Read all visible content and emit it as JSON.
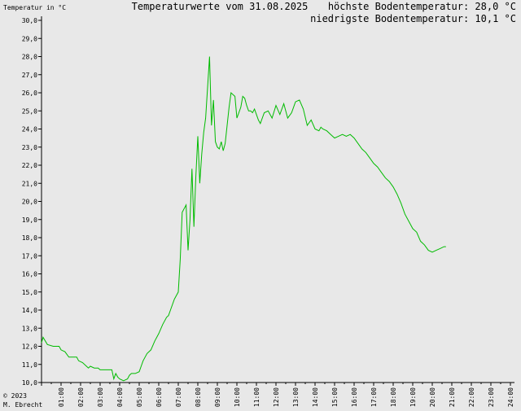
{
  "header": {
    "ylabel": "Temperatur in °C",
    "title": "Temperaturwerte vom 31.08.2025",
    "max_label": "höchste Bodentemperatur: 28,0 °C",
    "min_label": "niedrigste Bodentemperatur: 10,1 °C"
  },
  "footer": {
    "copyright": "© 2023",
    "author": "M. Ebrecht"
  },
  "colors": {
    "background": "#e8e8e8",
    "axis": "#000000",
    "line": "#00bb00"
  },
  "chart_data": {
    "type": "line",
    "title": "Temperaturwerte vom 31.08.2025",
    "ylabel": "Temperatur in °C",
    "xlabel": "",
    "xlim": [
      0,
      24
    ],
    "ylim": [
      10,
      30
    ],
    "grid": false,
    "y_ticks": [
      "10,0",
      "11,0",
      "12,0",
      "13,0",
      "14,0",
      "15,0",
      "16,0",
      "17,0",
      "18,0",
      "19,0",
      "20,0",
      "21,0",
      "22,0",
      "23,0",
      "24,0",
      "25,0",
      "26,0",
      "27,0",
      "28,0",
      "29,0",
      "30,0"
    ],
    "x_ticks": [
      "01:00",
      "02:00",
      "03:00",
      "04:00",
      "05:00",
      "06:00",
      "07:00",
      "08:00",
      "09:00",
      "10:00",
      "11:00",
      "12:00",
      "13:00",
      "14:00",
      "15:00",
      "16:00",
      "17:00",
      "18:00",
      "19:00",
      "20:00",
      "21:00",
      "22:00",
      "23:00",
      "24:00"
    ],
    "series": [
      {
        "x": [
          0.0,
          0.08,
          0.3,
          0.6,
          0.9,
          1.0,
          1.2,
          1.4,
          1.6,
          1.8,
          1.9,
          2.1,
          2.3,
          2.4,
          2.5,
          2.7,
          2.9,
          3.0,
          3.2,
          3.4,
          3.6,
          3.7,
          3.8,
          3.9,
          4.0,
          4.2,
          4.4,
          4.5,
          4.6,
          4.8,
          5.0,
          5.1,
          5.2,
          5.4,
          5.6,
          5.8,
          5.9,
          6.0,
          6.2,
          6.4,
          6.5,
          6.6,
          6.8,
          7.0,
          7.1,
          7.2,
          7.3,
          7.4,
          7.5,
          7.6,
          7.7,
          7.8,
          7.9,
          8.0,
          8.1,
          8.2,
          8.3,
          8.4,
          8.5,
          8.6,
          8.7,
          8.8,
          8.9,
          9.0,
          9.1,
          9.2,
          9.3,
          9.4,
          9.5,
          9.6,
          9.7,
          9.8,
          9.9,
          10.0,
          10.1,
          10.2,
          10.3,
          10.4,
          10.5,
          10.6,
          10.7,
          10.8,
          10.9,
          11.0,
          11.1,
          11.2,
          11.4,
          11.6,
          11.8,
          12.0,
          12.2,
          12.4,
          12.6,
          12.8,
          13.0,
          13.2,
          13.4,
          13.6,
          13.8,
          14.0,
          14.2,
          14.3,
          14.4,
          14.6,
          14.8,
          15.0,
          15.2,
          15.4,
          15.6,
          15.8,
          16.0,
          16.2,
          16.4,
          16.6,
          16.8,
          17.0,
          17.2,
          17.4,
          17.6,
          17.8,
          18.0,
          18.2,
          18.4,
          18.6,
          18.8,
          19.0,
          19.2,
          19.4,
          19.6,
          19.8,
          20.0,
          20.2,
          20.4,
          20.6,
          20.7
        ],
        "values": [
          12.2,
          12.5,
          12.1,
          12.0,
          12.0,
          11.8,
          11.7,
          11.4,
          11.4,
          11.4,
          11.2,
          11.1,
          10.9,
          10.8,
          10.9,
          10.8,
          10.8,
          10.7,
          10.7,
          10.7,
          10.7,
          10.2,
          10.5,
          10.3,
          10.2,
          10.1,
          10.2,
          10.4,
          10.5,
          10.5,
          10.6,
          10.9,
          11.2,
          11.6,
          11.8,
          12.3,
          12.5,
          12.7,
          13.2,
          13.6,
          13.7,
          14.0,
          14.6,
          15.0,
          16.8,
          19.4,
          19.6,
          19.8,
          17.3,
          19.0,
          21.8,
          18.6,
          21.4,
          23.6,
          21.0,
          22.6,
          23.8,
          24.6,
          26.3,
          28.0,
          24.2,
          25.6,
          23.3,
          23.0,
          22.9,
          23.3,
          22.8,
          23.2,
          24.2,
          25.2,
          26.0,
          25.9,
          25.8,
          24.6,
          24.9,
          25.2,
          25.8,
          25.7,
          25.3,
          25.0,
          25.0,
          24.9,
          25.1,
          24.8,
          24.5,
          24.3,
          24.9,
          25.0,
          24.6,
          25.3,
          24.8,
          25.4,
          24.6,
          24.9,
          25.5,
          25.6,
          25.1,
          24.2,
          24.5,
          24.0,
          23.9,
          24.1,
          24.0,
          23.9,
          23.7,
          23.5,
          23.6,
          23.7,
          23.6,
          23.7,
          23.5,
          23.2,
          22.9,
          22.7,
          22.4,
          22.1,
          21.9,
          21.6,
          21.3,
          21.1,
          20.8,
          20.4,
          19.9,
          19.3,
          18.9,
          18.5,
          18.3,
          17.8,
          17.6,
          17.3,
          17.2,
          17.3,
          17.4,
          17.5,
          17.5
        ]
      }
    ]
  }
}
